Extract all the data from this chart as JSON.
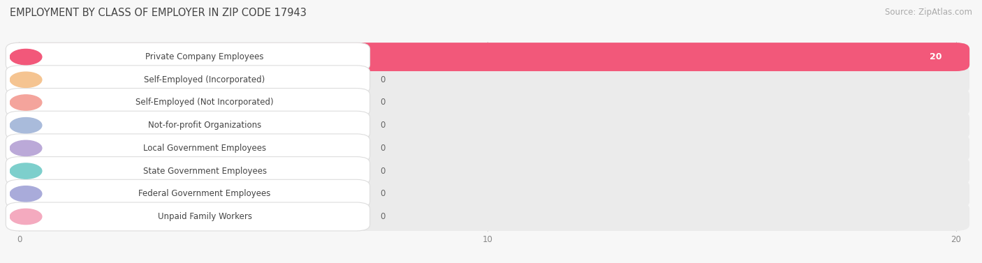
{
  "title": "EMPLOYMENT BY CLASS OF EMPLOYER IN ZIP CODE 17943",
  "source": "Source: ZipAtlas.com",
  "categories": [
    "Private Company Employees",
    "Self-Employed (Incorporated)",
    "Self-Employed (Not Incorporated)",
    "Not-for-profit Organizations",
    "Local Government Employees",
    "State Government Employees",
    "Federal Government Employees",
    "Unpaid Family Workers"
  ],
  "values": [
    20,
    0,
    0,
    0,
    0,
    0,
    0,
    0
  ],
  "bar_colors": [
    "#F2587A",
    "#F5C491",
    "#F4A49C",
    "#A9BBDB",
    "#BBA9D8",
    "#7DCFCC",
    "#A9ABDA",
    "#F4AABF"
  ],
  "xlim_max": 20,
  "xticks": [
    0,
    10,
    20
  ],
  "bg_color": "#f7f7f7",
  "row_bg_color": "#ebebeb",
  "title_fontsize": 10.5,
  "source_fontsize": 8.5,
  "label_fontsize": 8.5,
  "value_fontsize": 8.5
}
